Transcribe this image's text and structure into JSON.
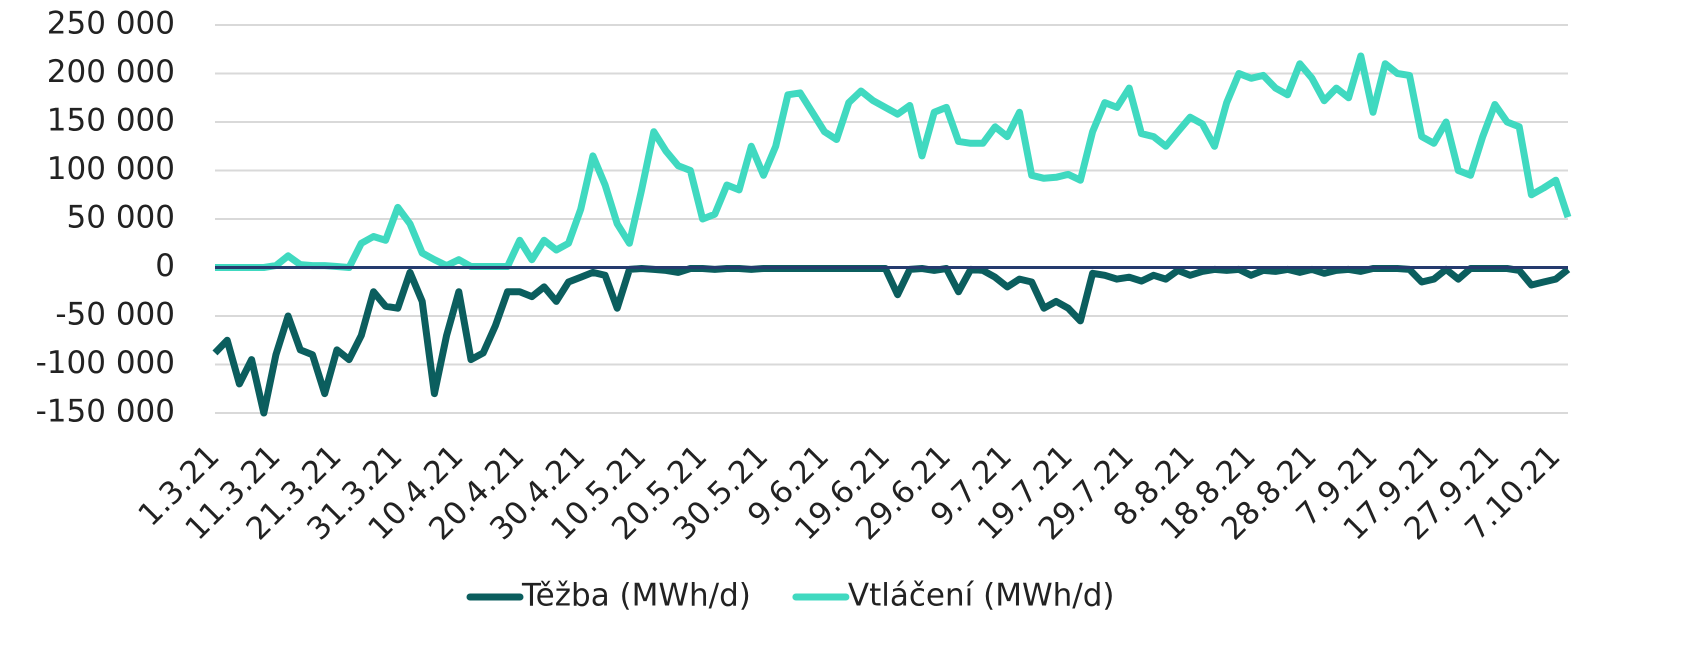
{
  "chart_data": {
    "type": "line",
    "categories": [
      "1.3.21",
      null,
      null,
      null,
      null,
      "11.3.21",
      null,
      null,
      null,
      null,
      "21.3.21",
      null,
      null,
      null,
      null,
      "31.3.21",
      null,
      null,
      null,
      null,
      "10.4.21",
      null,
      null,
      null,
      null,
      "20.4.21",
      null,
      null,
      null,
      null,
      "30.4.21",
      null,
      null,
      null,
      null,
      "10.5.21",
      null,
      null,
      null,
      null,
      "20.5.21",
      null,
      null,
      null,
      null,
      "30.5.21",
      null,
      null,
      null,
      null,
      "9.6.21",
      null,
      null,
      null,
      null,
      "19.6.21",
      null,
      null,
      null,
      null,
      "29.6.21",
      null,
      null,
      null,
      null,
      "9.7.21",
      null,
      null,
      null,
      null,
      "19.7.21",
      null,
      null,
      null,
      null,
      "29.7.21",
      null,
      null,
      null,
      null,
      "8.8.21",
      null,
      null,
      null,
      null,
      "18.8.21",
      null,
      null,
      null,
      null,
      "28.8.21",
      null,
      null,
      null,
      null,
      "7.9.21",
      null,
      null,
      null,
      null,
      "17.9.21",
      null,
      null,
      null,
      null,
      "27.9.21",
      null,
      null,
      null,
      null,
      "7.10.21",
      null
    ],
    "series": [
      {
        "name": "Těžba (MWh/d)",
        "color": "#0b5e5e",
        "values": [
          -88000,
          -75000,
          -120000,
          -95000,
          -150000,
          -90000,
          -50000,
          -85000,
          -90000,
          -130000,
          -85000,
          -95000,
          -70000,
          -25000,
          -40000,
          -42000,
          -5000,
          -35000,
          -130000,
          -70000,
          -25000,
          -95000,
          -88000,
          -60000,
          -25000,
          -25000,
          -30000,
          -20000,
          -35000,
          -15000,
          -10000,
          -5000,
          -8000,
          -42000,
          -2000,
          -1000,
          -2000,
          -3000,
          -5000,
          -1000,
          -1000,
          -2000,
          -1000,
          -1000,
          -2000,
          -1000,
          -1000,
          -1000,
          -1000,
          -1000,
          -1000,
          -1000,
          -1000,
          -1000,
          -1000,
          -1000,
          -28000,
          -2000,
          -1000,
          -3000,
          -1000,
          -25000,
          -2000,
          -3000,
          -10000,
          -20000,
          -12000,
          -15000,
          -42000,
          -35000,
          -42000,
          -55000,
          -6000,
          -8000,
          -12000,
          -10000,
          -14000,
          -8000,
          -12000,
          -3000,
          -8000,
          -4000,
          -2000,
          -3000,
          -2000,
          -8000,
          -3000,
          -4000,
          -2000,
          -5000,
          -2000,
          -6000,
          -3000,
          -2000,
          -4000,
          -1000,
          -1000,
          -1000,
          -2000,
          -15000,
          -12000,
          -2000,
          -12000,
          -1000,
          -1000,
          -1000,
          -1000,
          -3000,
          -18000,
          -15000,
          -12000,
          -2000
        ]
      },
      {
        "name": "Vtláčení (MWh/d)",
        "color": "#40d9c0",
        "values": [
          0,
          0,
          0,
          0,
          0,
          2000,
          12000,
          3000,
          2000,
          2000,
          1000,
          0,
          25000,
          32000,
          28000,
          62000,
          45000,
          15000,
          8000,
          2000,
          8000,
          1000,
          1000,
          1000,
          1000,
          28000,
          8000,
          28000,
          18000,
          25000,
          60000,
          115000,
          85000,
          45000,
          25000,
          80000,
          140000,
          120000,
          105000,
          100000,
          50000,
          55000,
          85000,
          80000,
          125000,
          95000,
          125000,
          178000,
          180000,
          160000,
          140000,
          132000,
          170000,
          182000,
          172000,
          165000,
          158000,
          167000,
          115000,
          160000,
          165000,
          130000,
          128000,
          128000,
          145000,
          135000,
          160000,
          95000,
          92000,
          93000,
          96000,
          90000,
          140000,
          170000,
          165000,
          185000,
          138000,
          135000,
          125000,
          140000,
          155000,
          148000,
          125000,
          170000,
          200000,
          195000,
          198000,
          185000,
          178000,
          210000,
          195000,
          172000,
          185000,
          175000,
          218000,
          160000,
          210000,
          200000,
          198000,
          135000,
          128000,
          150000,
          100000,
          95000,
          135000,
          168000,
          150000,
          145000,
          75000,
          82000,
          90000,
          52000
        ]
      }
    ],
    "ylim": [
      -150000,
      250000
    ],
    "yticks": [
      {
        "value": -150000,
        "label": "-150 000"
      },
      {
        "value": -100000,
        "label": "-100 000"
      },
      {
        "value": -50000,
        "label": "-50 000"
      },
      0,
      {
        "value": 50000,
        "label": "50 000"
      },
      {
        "value": 100000,
        "label": "100 000"
      },
      {
        "value": 150000,
        "label": "150 000"
      },
      {
        "value": 200000,
        "label": "200 000"
      },
      {
        "value": 250000,
        "label": "250 000"
      }
    ],
    "grid": true,
    "legend": "bottom"
  }
}
